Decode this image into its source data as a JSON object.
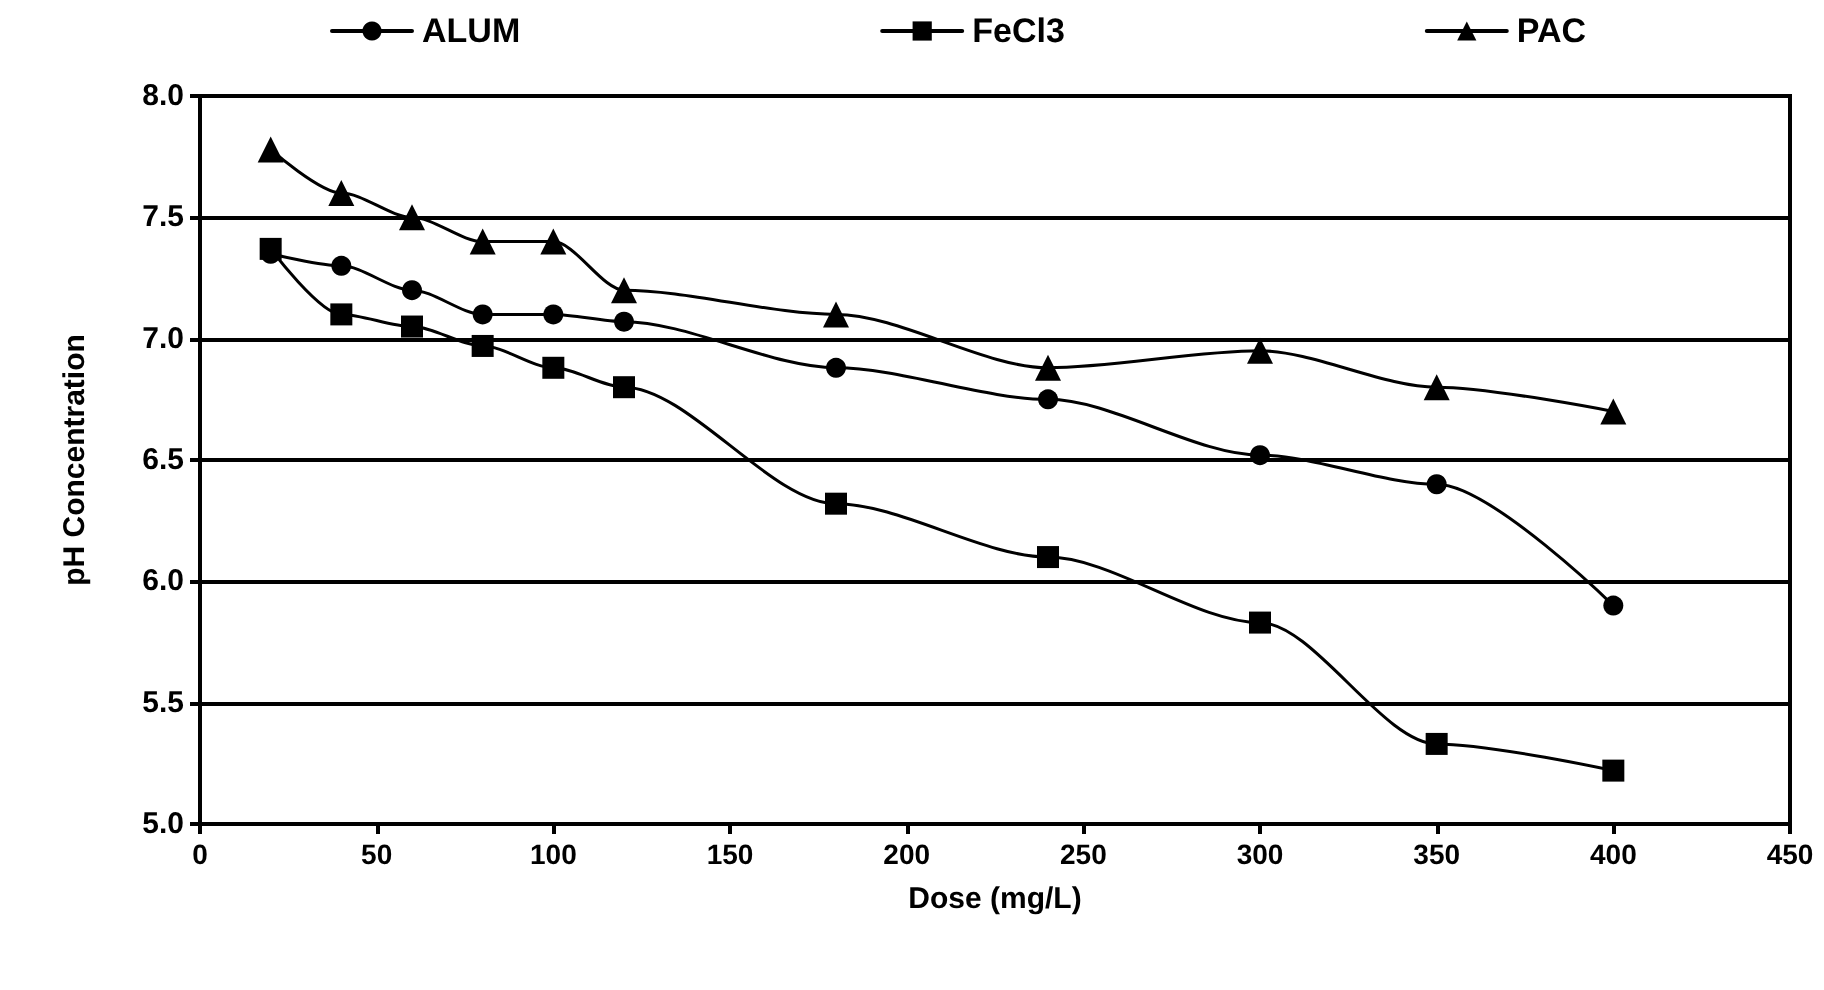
{
  "chart_data": {
    "type": "line",
    "xlabel": "Dose (mg/L)",
    "ylabel": "pH Concentration",
    "x": [
      20,
      40,
      60,
      80,
      100,
      120,
      180,
      240,
      300,
      350,
      400
    ],
    "series": [
      {
        "name": "ALUM",
        "color": "#000000",
        "marker": "circle",
        "values": [
          7.35,
          7.3,
          7.2,
          7.1,
          7.1,
          7.07,
          6.88,
          6.75,
          6.52,
          6.4,
          5.9
        ]
      },
      {
        "name": "FeCl3",
        "color": "#000000",
        "marker": "square",
        "values": [
          7.37,
          7.1,
          7.05,
          6.97,
          6.88,
          6.8,
          6.32,
          6.1,
          5.83,
          5.33,
          5.22
        ]
      },
      {
        "name": "PAC",
        "color": "#000000",
        "marker": "triangle",
        "values": [
          7.78,
          7.6,
          7.5,
          7.4,
          7.4,
          7.2,
          7.1,
          6.88,
          6.95,
          6.8,
          6.7
        ]
      }
    ],
    "xlim": [
      0,
      450
    ],
    "xticks": [
      0,
      50,
      100,
      150,
      200,
      250,
      300,
      350,
      400,
      450
    ],
    "ylim": [
      5.0,
      8.0
    ],
    "yticks": [
      {
        "value": 5.0,
        "label": "5.0"
      },
      {
        "value": 5.5,
        "label": "5.5"
      },
      {
        "value": 6.0,
        "label": "6.0"
      },
      {
        "value": 6.5,
        "label": "6.5"
      },
      {
        "value": 7.0,
        "label": "7.0"
      },
      {
        "value": 7.5,
        "label": "7.5"
      },
      {
        "value": 8.0,
        "label": "8.0"
      }
    ],
    "grid": "y",
    "legend": "top",
    "line_style": "solid"
  }
}
